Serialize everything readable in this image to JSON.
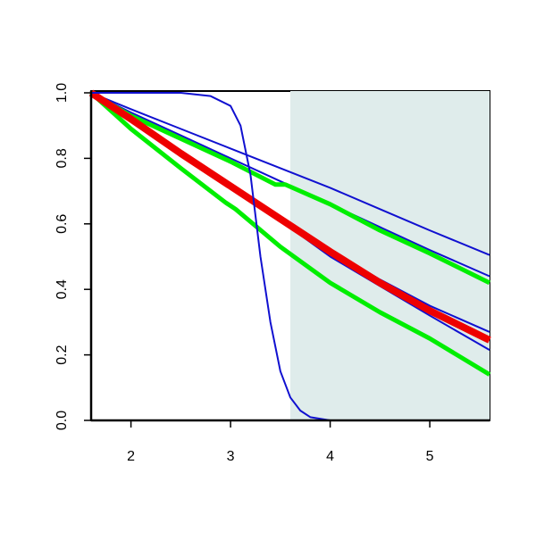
{
  "chart_data": {
    "type": "line",
    "xlim": [
      1.6,
      5.6
    ],
    "ylim": [
      0,
      1
    ],
    "xticks": [
      2,
      3,
      4,
      5
    ],
    "yticks": [
      {
        "value": 0,
        "label": "0.0"
      },
      {
        "value": 0.2,
        "label": "0.2"
      },
      {
        "value": 0.4,
        "label": "0.4"
      },
      {
        "value": 0.6,
        "label": "0.6"
      },
      {
        "value": 0.8,
        "label": "0.8"
      },
      {
        "value": 1,
        "label": "1.0"
      }
    ],
    "shaded_region": {
      "x": [
        3.6,
        5.6
      ],
      "color": "#dfeceb"
    },
    "series": [
      {
        "color": "#1010d0",
        "width": 2,
        "x": [
          1.6,
          2,
          2.5,
          3,
          3.5,
          4,
          4.5,
          5,
          5.6
        ],
        "values": [
          1,
          0.95,
          0.89,
          0.83,
          0.77,
          0.71,
          0.645,
          0.58,
          0.505
        ]
      },
      {
        "color": "#1010d0",
        "width": 2,
        "x": [
          1.6,
          2,
          2.5,
          3,
          3.5,
          4,
          4.5,
          5,
          5.6
        ],
        "values": [
          1,
          0.94,
          0.87,
          0.8,
          0.73,
          0.66,
          0.59,
          0.52,
          0.44
        ]
      },
      {
        "color": "#1010d0",
        "width": 2,
        "x": [
          1.6,
          2,
          2.5,
          3,
          3.5,
          4,
          4.5,
          5,
          5.6
        ],
        "values": [
          1,
          0.92,
          0.82,
          0.72,
          0.62,
          0.52,
          0.43,
          0.35,
          0.27
        ]
      },
      {
        "color": "#1010d0",
        "width": 2,
        "x": [
          1.6,
          2,
          2.5,
          3,
          3.5,
          4,
          4.5,
          5,
          5.6
        ],
        "values": [
          1,
          0.92,
          0.81,
          0.71,
          0.61,
          0.5,
          0.41,
          0.32,
          0.215
        ]
      },
      {
        "color": "#00ee00",
        "width": 5,
        "x": [
          1.6,
          2,
          2.5,
          3,
          3.45,
          3.55,
          4,
          4.5,
          5,
          5.6
        ],
        "values": [
          1,
          0.93,
          0.86,
          0.79,
          0.72,
          0.72,
          0.66,
          0.58,
          0.51,
          0.42
        ]
      },
      {
        "color": "#00ee00",
        "width": 5,
        "x": [
          1.6,
          2,
          2.5,
          2.95,
          3.05,
          3.5,
          4,
          4.5,
          5,
          5.6
        ],
        "values": [
          1,
          0.89,
          0.77,
          0.665,
          0.645,
          0.53,
          0.42,
          0.33,
          0.25,
          0.14
        ]
      },
      {
        "color": "#ee0000",
        "width": 8,
        "x": [
          1.6,
          2,
          2.5,
          3,
          3.5,
          4,
          4.5,
          5,
          5.6
        ],
        "values": [
          1,
          0.92,
          0.815,
          0.715,
          0.615,
          0.515,
          0.42,
          0.335,
          0.245
        ]
      },
      {
        "color": "#1010d0",
        "width": 2,
        "x": [
          1.6,
          2.5,
          2.8,
          3,
          3.1,
          3.2,
          3.3,
          3.4,
          3.5,
          3.6,
          3.7,
          3.8,
          4,
          5.6
        ],
        "values": [
          1,
          1,
          0.99,
          0.96,
          0.9,
          0.75,
          0.5,
          0.3,
          0.15,
          0.07,
          0.03,
          0.01,
          0,
          0
        ]
      }
    ]
  }
}
